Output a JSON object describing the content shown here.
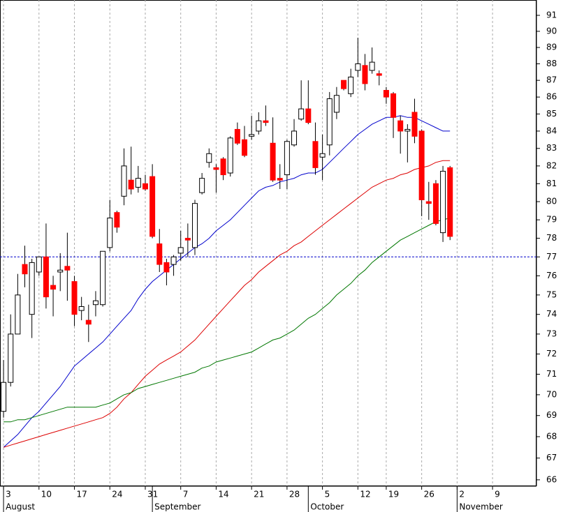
{
  "chart_data": {
    "type": "candlestick",
    "log_scale": true,
    "grid": true,
    "ylim": [
      65.71,
      91.97
    ],
    "yticks": [
      66,
      67,
      68,
      69,
      70,
      71,
      72,
      73,
      74,
      75,
      76,
      77,
      78,
      79,
      80,
      81,
      82,
      83,
      84,
      85,
      86,
      87,
      88,
      89,
      90,
      91
    ],
    "xlim": [
      -0.5,
      75.2
    ],
    "xticks": [
      {
        "value": 0,
        "label": "3"
      },
      {
        "value": 5,
        "label": "10"
      },
      {
        "value": 10,
        "label": "17"
      },
      {
        "value": 15,
        "label": "24"
      },
      {
        "value": 20,
        "label": "31"
      },
      {
        "value": 25,
        "label": "7"
      },
      {
        "value": 30,
        "label": "14"
      },
      {
        "value": 35,
        "label": "21"
      },
      {
        "value": 40,
        "label": "28"
      },
      {
        "value": 45,
        "label": "5"
      },
      {
        "value": 50,
        "label": "12"
      },
      {
        "value": 54,
        "label": "19"
      },
      {
        "value": 59,
        "label": "26"
      },
      {
        "value": 64,
        "label": "2"
      },
      {
        "value": 69,
        "label": "9"
      }
    ],
    "month_ticks": [
      {
        "value": 0,
        "label": "August"
      },
      {
        "value": 21,
        "label": "September"
      },
      {
        "value": 43,
        "label": "October"
      },
      {
        "value": 64,
        "label": "November"
      }
    ],
    "up_color": "#ffffff",
    "down_color": "#ff0000",
    "open": [
      69.2,
      70.6,
      73.0,
      76.6,
      74.0,
      76.2,
      77.0,
      75.5,
      76.2,
      76.5,
      75.7,
      74.2,
      73.7,
      74.5,
      74.5,
      77.5,
      79.4,
      80.3,
      81.2,
      80.8,
      81.0,
      81.4,
      77.7,
      76.7,
      76.6,
      77.2,
      78.0,
      77.5,
      80.5,
      82.2,
      81.9,
      82.4,
      81.6,
      84.1,
      83.5,
      83.7,
      84.0,
      84.6,
      83.3,
      81.3,
      81.5,
      83.2,
      84.7,
      85.3,
      83.4,
      82.5,
      83.2,
      85.1,
      87.0,
      86.2,
      87.6,
      87.9,
      87.6,
      87.4,
      86.4,
      86.2,
      84.6,
      84.0,
      85.1,
      84.0,
      80.0,
      81.0,
      78.3,
      81.9
    ],
    "high": [
      71.7,
      74.0,
      76.1,
      77.6,
      76.9,
      77.0,
      78.8,
      76.0,
      77.2,
      78.3,
      76.0,
      74.9,
      74.5,
      75.2,
      77.3,
      80.1,
      79.5,
      83.0,
      83.1,
      82.0,
      81.5,
      82.1,
      78.5,
      76.9,
      77.1,
      78.4,
      78.8,
      80.1,
      81.6,
      83.0,
      82.1,
      82.5,
      83.7,
      84.5,
      84.3,
      84.9,
      85.1,
      85.5,
      84.8,
      82.1,
      83.5,
      84.7,
      87.0,
      87.0,
      84.5,
      83.8,
      86.3,
      86.6,
      87.0,
      87.7,
      89.6,
      88.6,
      89.0,
      87.6,
      86.6,
      86.3,
      84.9,
      84.4,
      85.9,
      84.1,
      81.1,
      81.2,
      82.0,
      82.0
    ],
    "low": [
      68.9,
      70.4,
      73.1,
      75.4,
      72.8,
      76.0,
      74.3,
      73.9,
      75.2,
      74.7,
      73.4,
      73.7,
      72.6,
      73.9,
      74.4,
      77.3,
      78.3,
      79.8,
      80.4,
      80.5,
      80.6,
      78.0,
      76.2,
      75.5,
      76.0,
      76.8,
      77.0,
      77.1,
      80.4,
      81.9,
      80.5,
      81.2,
      81.4,
      83.2,
      82.5,
      83.5,
      83.8,
      84.3,
      81.1,
      80.7,
      80.7,
      83.1,
      84.6,
      84.4,
      81.5,
      81.2,
      82.6,
      84.7,
      86.4,
      86.0,
      87.2,
      86.4,
      87.4,
      86.7,
      85.6,
      83.6,
      82.7,
      82.2,
      83.3,
      79.2,
      79.0,
      78.7,
      77.8,
      77.9
    ],
    "close": [
      70.6,
      73.0,
      75.0,
      76.1,
      76.7,
      77.0,
      74.9,
      75.3,
      76.3,
      76.3,
      74.0,
      74.4,
      73.5,
      74.7,
      77.3,
      79.1,
      78.6,
      82.0,
      80.7,
      81.3,
      80.7,
      78.1,
      76.6,
      76.2,
      77.0,
      77.5,
      77.9,
      79.9,
      81.3,
      82.7,
      81.8,
      81.5,
      83.6,
      83.3,
      82.6,
      83.8,
      84.6,
      84.5,
      81.2,
      81.2,
      83.4,
      84.0,
      85.3,
      84.5,
      81.9,
      82.7,
      85.9,
      86.1,
      86.5,
      87.2,
      88.0,
      86.8,
      88.1,
      87.3,
      86.0,
      84.8,
      84.0,
      84.1,
      83.7,
      80.1,
      79.9,
      78.8,
      81.7,
      78.1
    ],
    "lines": [
      {
        "color": "#0000cc",
        "values": [
          67.5,
          67.8,
          68.1,
          68.5,
          68.9,
          69.2,
          69.6,
          70.0,
          70.4,
          70.9,
          71.4,
          71.7,
          72.0,
          72.3,
          72.6,
          73.0,
          73.4,
          73.8,
          74.2,
          74.8,
          75.3,
          75.7,
          76.0,
          76.3,
          76.6,
          76.9,
          77.2,
          77.5,
          77.7,
          78.0,
          78.4,
          78.7,
          79.0,
          79.4,
          79.8,
          80.2,
          80.6,
          80.8,
          80.9,
          81.1,
          81.2,
          81.3,
          81.5,
          81.6,
          81.6,
          81.8,
          82.2,
          82.6,
          83.0,
          83.4,
          83.8,
          84.1,
          84.4,
          84.6,
          84.8,
          84.8,
          84.9,
          84.8,
          84.8,
          84.6,
          84.4,
          84.2,
          84.0,
          84.0
        ]
      },
      {
        "color": "#dd0000",
        "values": [
          67.5,
          67.6,
          67.7,
          67.8,
          67.9,
          68.0,
          68.1,
          68.2,
          68.3,
          68.4,
          68.5,
          68.6,
          68.7,
          68.8,
          68.9,
          69.1,
          69.4,
          69.8,
          70.1,
          70.5,
          70.9,
          71.2,
          71.5,
          71.7,
          71.9,
          72.1,
          72.4,
          72.7,
          73.1,
          73.5,
          73.9,
          74.3,
          74.7,
          75.1,
          75.5,
          75.8,
          76.2,
          76.5,
          76.8,
          77.1,
          77.3,
          77.6,
          77.8,
          78.1,
          78.4,
          78.7,
          79.0,
          79.3,
          79.6,
          79.9,
          80.2,
          80.5,
          80.8,
          81.0,
          81.2,
          81.3,
          81.5,
          81.6,
          81.8,
          81.9,
          82.0,
          82.2,
          82.3,
          82.3
        ]
      },
      {
        "color": "#007700",
        "values": [
          68.7,
          68.7,
          68.8,
          68.8,
          68.9,
          69.0,
          69.1,
          69.2,
          69.3,
          69.4,
          69.4,
          69.4,
          69.4,
          69.4,
          69.5,
          69.6,
          69.8,
          70.0,
          70.1,
          70.3,
          70.4,
          70.5,
          70.6,
          70.7,
          70.8,
          70.9,
          71.0,
          71.1,
          71.3,
          71.4,
          71.6,
          71.7,
          71.8,
          71.9,
          72.0,
          72.1,
          72.3,
          72.5,
          72.7,
          72.8,
          73.0,
          73.2,
          73.5,
          73.8,
          74.0,
          74.3,
          74.6,
          75.0,
          75.3,
          75.6,
          76.0,
          76.3,
          76.7,
          77.0,
          77.3,
          77.6,
          77.9,
          78.1,
          78.3,
          78.5,
          78.7,
          78.9,
          79.0,
          79.1
        ]
      }
    ],
    "reference_line": {
      "value": 77,
      "color": "#0000cc"
    }
  }
}
